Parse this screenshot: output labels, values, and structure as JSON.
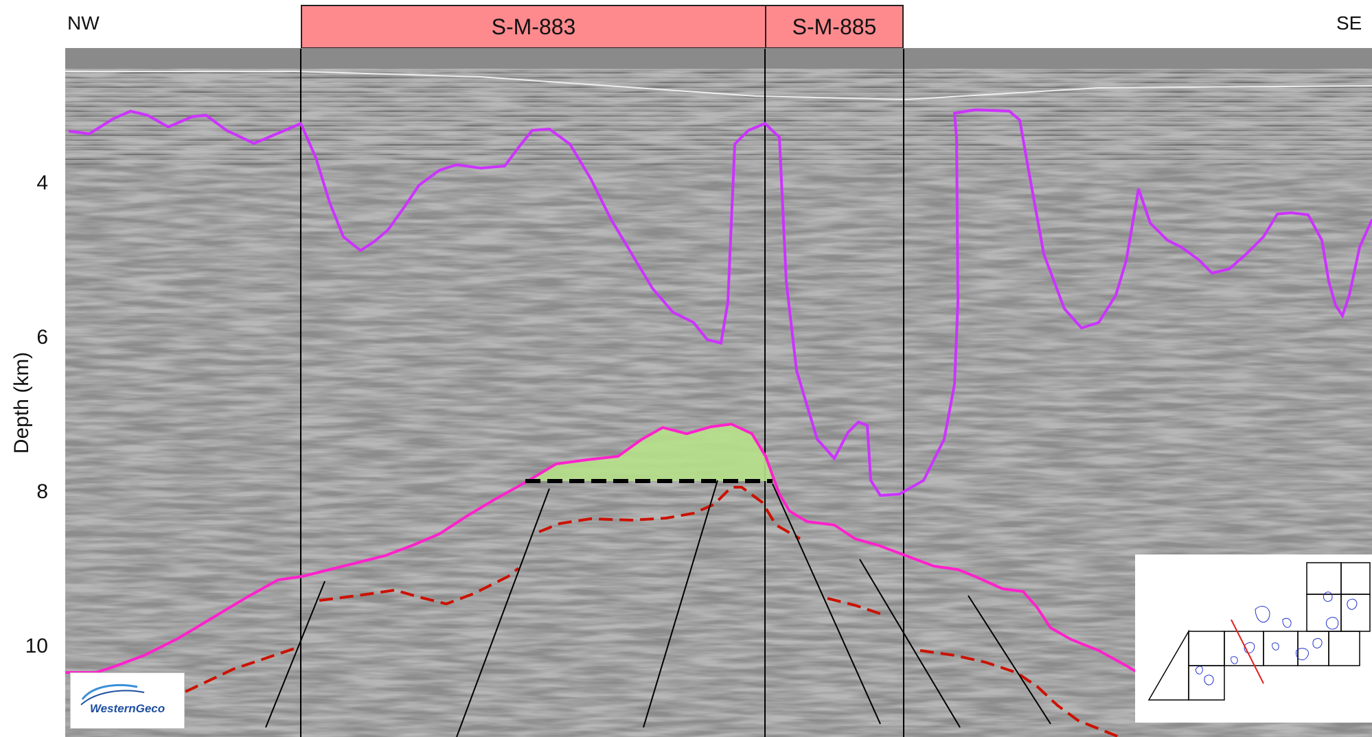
{
  "directions": {
    "left": "NW",
    "right": "SE"
  },
  "blocks": [
    {
      "name": "S-M-883"
    },
    {
      "name": "S-M-885"
    }
  ],
  "axis": {
    "ylabel": "Depth (km)",
    "yticks": [
      "4",
      "6",
      "8",
      "10"
    ]
  },
  "logo": {
    "text": "WesternGeco"
  },
  "colors": {
    "block_fill": "#ff8a8e",
    "salt_horizon": "#cc33ff",
    "base_horizon": "#ff22cc",
    "dashed_red": "#cc1100",
    "prospect_fill": "#b6e08a",
    "seismic_bg": "#8a8a8a",
    "inset_line": "#e02020",
    "inset_outline": "#2233cc"
  }
}
